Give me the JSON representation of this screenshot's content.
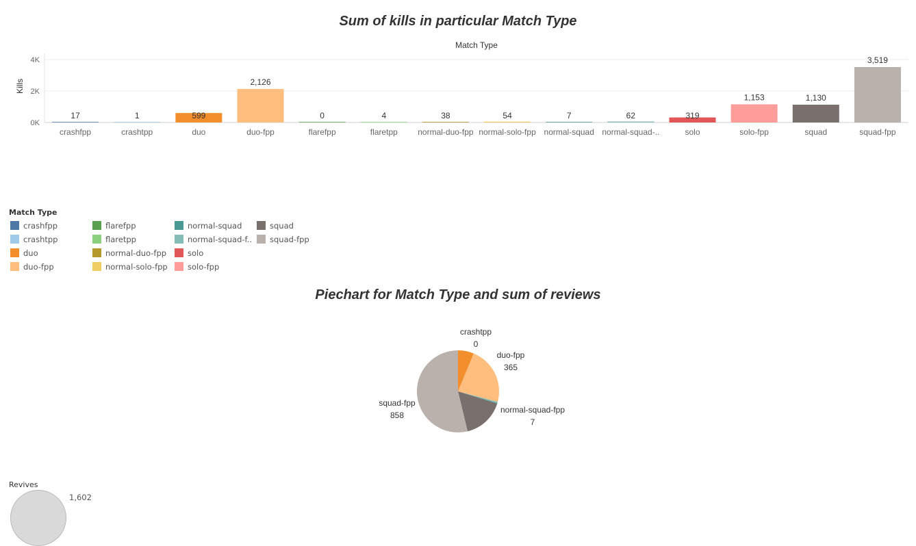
{
  "bar_chart": {
    "title": "Sum of kills in particular Match Type",
    "header": "Match Type",
    "ylabel": "Kills",
    "yticks": [
      "4K",
      "2K",
      "0K"
    ]
  },
  "legend": {
    "title": "Match Type",
    "items": [
      {
        "label": "crashfpp",
        "color": "#4e79a7"
      },
      {
        "label": "crashtpp",
        "color": "#a0cbe8"
      },
      {
        "label": "duo",
        "color": "#f28e2b"
      },
      {
        "label": "duo-fpp",
        "color": "#ffbe7d"
      },
      {
        "label": "flarefpp",
        "color": "#59a14f"
      },
      {
        "label": "flaretpp",
        "color": "#8cd17d"
      },
      {
        "label": "normal-duo-fpp",
        "color": "#b6992d"
      },
      {
        "label": "normal-solo-fpp",
        "color": "#f1ce63"
      },
      {
        "label": "normal-squad",
        "color": "#499894"
      },
      {
        "label": "normal-squad-f..",
        "color": "#86bcb6"
      },
      {
        "label": "solo",
        "color": "#e15759"
      },
      {
        "label": "solo-fpp",
        "color": "#ff9d9a"
      },
      {
        "label": "squad",
        "color": "#79706e"
      },
      {
        "label": "squad-fpp",
        "color": "#bab0ac"
      }
    ]
  },
  "pie_chart": {
    "title": "Piechart for Match Type and sum of reviews"
  },
  "size_legend": {
    "title": "Revives",
    "value": "1,602"
  },
  "chart_data": [
    {
      "type": "bar",
      "title": "Sum of kills in particular Match Type",
      "xlabel": "Match Type",
      "ylabel": "Kills",
      "ylim": [
        0,
        4000
      ],
      "categories": [
        "crashfpp",
        "crashtpp",
        "duo",
        "duo-fpp",
        "flarefpp",
        "flaretpp",
        "normal-duo-fpp",
        "normal-solo-fpp",
        "normal-squad",
        "normal-squad-..",
        "solo",
        "solo-fpp",
        "squad",
        "squad-fpp"
      ],
      "values": [
        17,
        1,
        599,
        2126,
        0,
        4,
        38,
        54,
        7,
        62,
        319,
        1153,
        1130,
        3519
      ],
      "value_labels": [
        "17",
        "1",
        "599",
        "2,126",
        "0",
        "4",
        "38",
        "54",
        "7",
        "62",
        "319",
        "1,153",
        "1,130",
        "3,519"
      ],
      "colors": [
        "#4e79a7",
        "#a0cbe8",
        "#f28e2b",
        "#ffbe7d",
        "#59a14f",
        "#8cd17d",
        "#b6992d",
        "#f1ce63",
        "#499894",
        "#86bcb6",
        "#e15759",
        "#ff9d9a",
        "#79706e",
        "#bab0ac"
      ],
      "grid": true
    },
    {
      "type": "pie",
      "title": "Piechart for Match Type and sum of reviews",
      "slices": [
        {
          "label": "duo",
          "value": 100,
          "color": "#f28e2b",
          "shown": false
        },
        {
          "label": "duo-fpp",
          "value": 365,
          "color": "#ffbe7d",
          "shown": true,
          "value_label": "365"
        },
        {
          "label": "normal-squad-fpp",
          "value": 7,
          "color": "#86bcb6",
          "shown": true,
          "value_label": "7"
        },
        {
          "label": "normal-squad",
          "value": 4,
          "color": "#499894",
          "shown": false
        },
        {
          "label": "squad",
          "value": 262,
          "color": "#79706e",
          "shown": false
        },
        {
          "label": "squad-fpp",
          "value": 858,
          "color": "#bab0ac",
          "shown": true,
          "value_label": "858"
        },
        {
          "label": "crashtpp",
          "value": 0,
          "color": "#a0cbe8",
          "shown": true,
          "value_label": "0"
        }
      ]
    }
  ]
}
